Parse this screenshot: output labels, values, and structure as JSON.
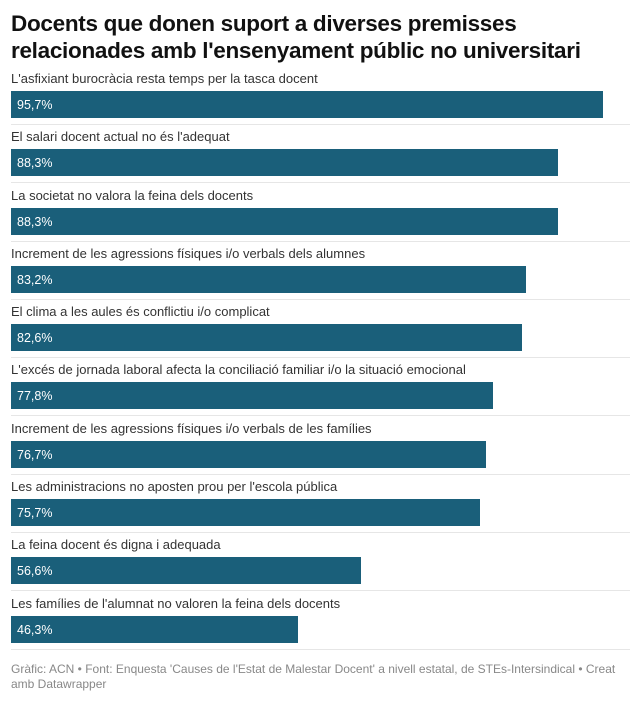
{
  "chart_data": {
    "type": "bar",
    "orientation": "horizontal",
    "title": "Docents que donen suport a diverses premisses relacionades amb l'ensenyament públic no universitari",
    "categories": [
      "L'asfixiant burocràcia resta temps per la tasca docent",
      "El salari docent actual no és l'adequat",
      "La societat no valora la feina dels docents",
      "Increment de les agressions físiques i/o verbals dels alumnes",
      "El clima a les aules és conflictiu i/o complicat",
      "L'excés de jornada laboral afecta la conciliació familiar i/o la situació emocional",
      "Increment de les agressions físiques i/o verbals de les famílies",
      "Les administracions no aposten prou per l'escola pública",
      "La feina docent és digna i adequada",
      "Les famílies de l'alumnat no valoren la feina dels docents"
    ],
    "values": [
      95.7,
      88.3,
      88.3,
      83.2,
      82.6,
      77.8,
      76.7,
      75.7,
      56.6,
      46.3
    ],
    "labels": [
      "95,7%",
      "88,3%",
      "88,3%",
      "83,2%",
      "82,6%",
      "77,8%",
      "76,7%",
      "75,7%",
      "56,6%",
      "46,3%"
    ],
    "xlim": [
      0,
      100
    ],
    "bar_color": "#1a5f7a",
    "grid": false
  },
  "footer": "Gràfic: ACN • Font: Enquesta 'Causes de l'Estat de Malestar Docent' a nivell estatal, de STEs-Intersindical • Creat amb Datawrapper"
}
